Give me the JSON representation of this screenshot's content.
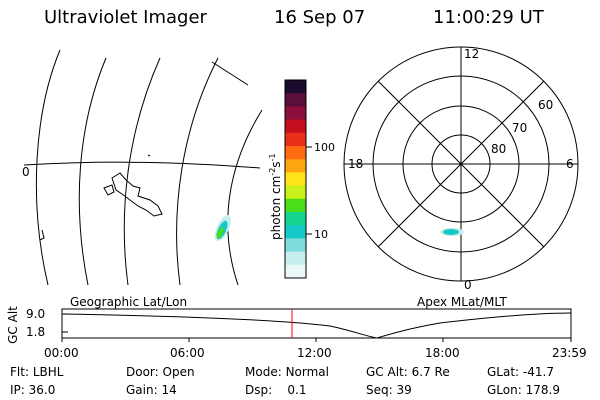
{
  "header": {
    "instrument": "Ultraviolet Imager",
    "date": "16 Sep 07",
    "time": "11:00:29 UT"
  },
  "colorbar": {
    "unit_label": "photon cm",
    "unit_exp1": "-2",
    "unit_s": "s",
    "unit_exp2": "-1",
    "ticks": [
      "100",
      "10"
    ],
    "colors": [
      "#1a0a2e",
      "#5a0f3a",
      "#8a0f3a",
      "#c40f1e",
      "#e8301a",
      "#ff6a12",
      "#ffa512",
      "#ffe31a",
      "#c8f01a",
      "#4ade1a",
      "#15d48e",
      "#16c9c9",
      "#7fdcdc",
      "#c7eeee",
      "#eaf8f8"
    ]
  },
  "polar": {
    "mlt_labels": {
      "top": "12",
      "left": "18",
      "right": "6",
      "bottom": "0"
    },
    "lat_labels": [
      "60",
      "70",
      "80"
    ]
  },
  "map": {
    "lon_label": "0"
  },
  "projection_labels": {
    "left": "Geographic Lat/Lon",
    "right": "Apex MLat/MLT"
  },
  "timeline": {
    "axis_title": "GC Alt",
    "y_ticks": [
      "9.0",
      "1.8"
    ],
    "x_ticks": [
      "00:00",
      "06:00",
      "12:00",
      "18:00",
      "23:59"
    ]
  },
  "status": {
    "row1": [
      {
        "label": "Flt:",
        "value": "LBHL"
      },
      {
        "label": "Door:",
        "value": "Open"
      },
      {
        "label": "Mode:",
        "value": "Normal"
      },
      {
        "label": "GC Alt:",
        "value": "6.7 Re"
      },
      {
        "label": "GLat:",
        "value": "-41.7"
      }
    ],
    "row2": [
      {
        "label": "IP:",
        "value": "36.0"
      },
      {
        "label": "Gain:",
        "value": "14"
      },
      {
        "label": "Dsp:",
        "value": "0.1"
      },
      {
        "label": "Seq:",
        "value": "39"
      },
      {
        "label": "GLon:",
        "value": "178.9"
      }
    ]
  }
}
